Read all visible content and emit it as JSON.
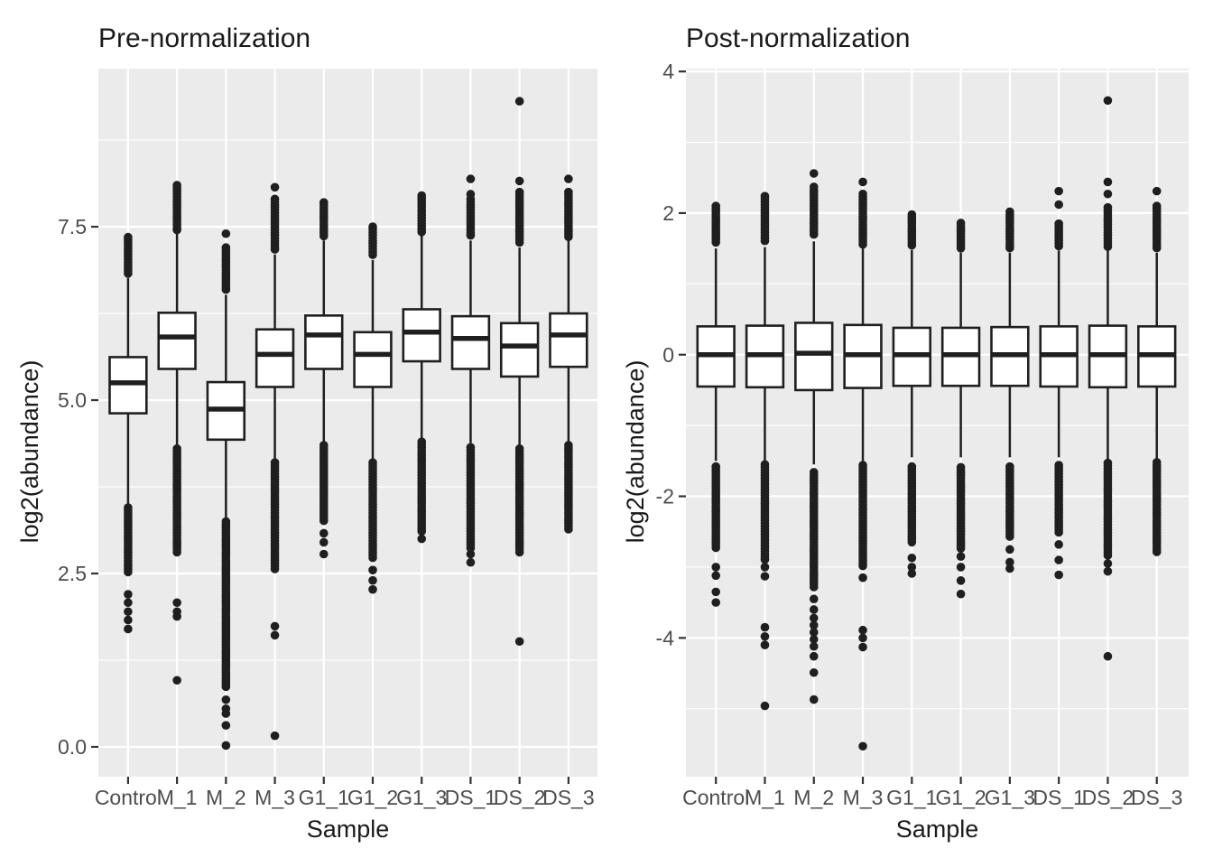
{
  "colors": {
    "figure_background": "#FFFFFF",
    "panel_background": "#EBEBEB",
    "gridline": "#FFFFFF",
    "box_fill": "#FFFFFF",
    "box_stroke": "#1F1F1F",
    "outlier": "#1F1F1F",
    "tick_mark": "#333333",
    "tick_label": "#4D4D4D",
    "title_text": "#1A1A1A",
    "axis_title_text": "#1A1A1A"
  },
  "chart_data": [
    {
      "type": "boxplot",
      "title": "Pre-normalization",
      "xlabel": "Sample",
      "ylabel": "log2(abundance)",
      "grid": true,
      "legend": false,
      "categories": [
        "Control",
        "M_1",
        "M_2",
        "M_3",
        "G1_1",
        "G1_2",
        "G1_3",
        "DS_1",
        "DS_2",
        "DS_3"
      ],
      "ylim": [
        -0.43,
        9.78
      ],
      "y_ticks": [
        {
          "value": 0.0,
          "label": "0.0"
        },
        {
          "value": 2.5,
          "label": "2.5"
        },
        {
          "value": 5.0,
          "label": "5.0"
        },
        {
          "value": 7.5,
          "label": "7.5"
        }
      ],
      "y_minor": [
        1.25,
        3.75,
        6.25,
        8.75
      ],
      "stats_order": [
        "whisker_low",
        "q1",
        "median",
        "q3",
        "whisker_high"
      ],
      "samples": [
        {
          "name": "Control",
          "stats": [
            3.5,
            4.81,
            5.25,
            5.62,
            6.76
          ],
          "outliers_high": {
            "cluster": [
              6.8,
              7.35
            ],
            "dots": []
          },
          "outliers_low": {
            "cluster": [
              2.5,
              3.45
            ],
            "dots": [
              2.2,
              2.08,
              1.95,
              1.83,
              1.7
            ]
          }
        },
        {
          "name": "M_1",
          "stats": [
            4.32,
            5.45,
            5.91,
            6.26,
            7.42
          ],
          "outliers_high": {
            "cluster": [
              7.45,
              8.1
            ],
            "dots": []
          },
          "outliers_low": {
            "cluster": [
              2.8,
              4.3
            ],
            "dots": [
              2.08,
              1.95,
              1.88,
              0.96
            ]
          }
        },
        {
          "name": "M_2",
          "stats": [
            3.3,
            4.43,
            4.87,
            5.26,
            6.52
          ],
          "outliers_high": {
            "cluster": [
              6.58,
              7.2
            ],
            "dots": [
              7.4
            ]
          },
          "outliers_low": {
            "cluster": [
              0.85,
              3.25
            ],
            "dots": [
              0.68,
              0.55,
              0.48,
              0.31,
              0.02
            ]
          }
        },
        {
          "name": "M_3",
          "stats": [
            4.12,
            5.19,
            5.66,
            6.02,
            7.1
          ],
          "outliers_high": {
            "cluster": [
              7.15,
              7.9
            ],
            "dots": [
              8.07
            ]
          },
          "outliers_low": {
            "cluster": [
              2.55,
              4.1
            ],
            "dots": [
              1.74,
              1.61,
              0.16
            ]
          }
        },
        {
          "name": "G1_1",
          "stats": [
            4.38,
            5.45,
            5.94,
            6.22,
            7.3
          ],
          "outliers_high": {
            "cluster": [
              7.35,
              7.85
            ],
            "dots": []
          },
          "outliers_low": {
            "cluster": [
              3.25,
              4.35
            ],
            "dots": [
              3.08,
              2.95,
              2.78
            ]
          }
        },
        {
          "name": "G1_2",
          "stats": [
            4.12,
            5.19,
            5.66,
            5.98,
            7.02
          ],
          "outliers_high": {
            "cluster": [
              7.08,
              7.5
            ],
            "dots": []
          },
          "outliers_low": {
            "cluster": [
              2.7,
              4.1
            ],
            "dots": [
              2.55,
              2.4,
              2.27
            ]
          }
        },
        {
          "name": "G1_3",
          "stats": [
            4.45,
            5.56,
            5.98,
            6.31,
            7.38
          ],
          "outliers_high": {
            "cluster": [
              7.42,
              7.95
            ],
            "dots": []
          },
          "outliers_low": {
            "cluster": [
              3.1,
              4.4
            ],
            "dots": [
              3.0
            ]
          }
        },
        {
          "name": "DS_1",
          "stats": [
            4.38,
            5.45,
            5.89,
            6.21,
            7.3
          ],
          "outliers_high": {
            "cluster": [
              7.36,
              7.9
            ],
            "dots": [
              8.19,
              7.97
            ]
          },
          "outliers_low": {
            "cluster": [
              2.85,
              4.32
            ],
            "dots": [
              2.78,
              2.66
            ]
          }
        },
        {
          "name": "DS_2",
          "stats": [
            4.32,
            5.34,
            5.78,
            6.11,
            7.2
          ],
          "outliers_high": {
            "cluster": [
              7.25,
              8.0
            ],
            "dots": [
              9.31,
              8.16
            ]
          },
          "outliers_low": {
            "cluster": [
              2.8,
              4.3
            ],
            "dots": [
              1.52
            ]
          }
        },
        {
          "name": "DS_3",
          "stats": [
            4.38,
            5.48,
            5.94,
            6.25,
            7.3
          ],
          "outliers_high": {
            "cluster": [
              7.34,
              8.0
            ],
            "dots": [
              8.19
            ]
          },
          "outliers_low": {
            "cluster": [
              3.1,
              4.35
            ],
            "dots": []
          }
        }
      ]
    },
    {
      "type": "boxplot",
      "title": "Post-normalization",
      "xlabel": "Sample",
      "ylabel": "log2(abundance)",
      "grid": true,
      "legend": false,
      "categories": [
        "Control",
        "M_1",
        "M_2",
        "M_3",
        "G1_1",
        "G1_2",
        "G1_3",
        "DS_1",
        "DS_2",
        "DS_3"
      ],
      "ylim": [
        -5.96,
        4.04
      ],
      "y_ticks": [
        {
          "value": -4,
          "label": "-4"
        },
        {
          "value": -2,
          "label": "-2"
        },
        {
          "value": 0,
          "label": "0"
        },
        {
          "value": 2,
          "label": "2"
        },
        {
          "value": 4,
          "label": "4"
        }
      ],
      "y_minor": [
        -5,
        -3,
        -1,
        1,
        3
      ],
      "stats_order": [
        "whisker_low",
        "q1",
        "median",
        "q3",
        "whisker_high"
      ],
      "samples": [
        {
          "name": "Control",
          "stats": [
            -1.5,
            -0.45,
            0,
            0.4,
            1.5
          ],
          "outliers_high": {
            "cluster": [
              1.55,
              2.1
            ],
            "dots": []
          },
          "outliers_low": {
            "cluster": [
              -2.73,
              -1.58
            ],
            "dots": [
              -3.0,
              -3.12,
              -3.35,
              -3.5
            ]
          }
        },
        {
          "name": "M_1",
          "stats": [
            -1.5,
            -0.46,
            0,
            0.41,
            1.52
          ],
          "outliers_high": {
            "cluster": [
              1.57,
              2.24
            ],
            "dots": []
          },
          "outliers_low": {
            "cluster": [
              -2.9,
              -1.55
            ],
            "dots": [
              -3.0,
              -3.13,
              -3.85,
              -3.98,
              -4.1,
              -4.96
            ]
          }
        },
        {
          "name": "M_2",
          "stats": [
            -1.55,
            -0.5,
            0.02,
            0.45,
            1.6
          ],
          "outliers_high": {
            "cluster": [
              1.66,
              2.37
            ],
            "dots": [
              2.56
            ]
          },
          "outliers_low": {
            "cluster": [
              -3.3,
              -1.66
            ],
            "dots": [
              -3.45,
              -3.6,
              -3.72,
              -3.82,
              -3.92,
              -4.02,
              -4.12,
              -4.26,
              -4.49,
              -4.87
            ]
          }
        },
        {
          "name": "M_3",
          "stats": [
            -1.5,
            -0.47,
            0,
            0.42,
            1.5
          ],
          "outliers_high": {
            "cluster": [
              1.53,
              2.27
            ],
            "dots": [
              2.44
            ]
          },
          "outliers_low": {
            "cluster": [
              -3.0,
              -1.56
            ],
            "dots": [
              -3.15,
              -3.89,
              -4.0,
              -4.13,
              -5.53
            ]
          }
        },
        {
          "name": "G1_1",
          "stats": [
            -1.45,
            -0.44,
            0,
            0.38,
            1.48
          ],
          "outliers_high": {
            "cluster": [
              1.53,
              1.98
            ],
            "dots": []
          },
          "outliers_low": {
            "cluster": [
              -2.68,
              -1.58
            ],
            "dots": [
              -2.87,
              -3.0,
              -3.09
            ]
          }
        },
        {
          "name": "G1_2",
          "stats": [
            -1.45,
            -0.44,
            0,
            0.38,
            1.44
          ],
          "outliers_high": {
            "cluster": [
              1.48,
              1.86
            ],
            "dots": []
          },
          "outliers_low": {
            "cluster": [
              -2.77,
              -1.59
            ],
            "dots": [
              -2.85,
              -3.0,
              -3.19,
              -3.38
            ]
          }
        },
        {
          "name": "G1_3",
          "stats": [
            -1.45,
            -0.44,
            0,
            0.39,
            1.44
          ],
          "outliers_high": {
            "cluster": [
              1.48,
              2.02
            ],
            "dots": []
          },
          "outliers_low": {
            "cluster": [
              -2.6,
              -1.58
            ],
            "dots": [
              -2.75,
              -2.93,
              -3.02
            ]
          }
        },
        {
          "name": "DS_1",
          "stats": [
            -1.45,
            -0.45,
            0,
            0.4,
            1.47
          ],
          "outliers_high": {
            "cluster": [
              1.51,
              1.85
            ],
            "dots": [
              2.31,
              2.12
            ]
          },
          "outliers_low": {
            "cluster": [
              -2.51,
              -1.56
            ],
            "dots": [
              -2.68,
              -2.9,
              -3.11
            ]
          }
        },
        {
          "name": "DS_2",
          "stats": [
            -1.5,
            -0.46,
            0,
            0.41,
            1.47
          ],
          "outliers_high": {
            "cluster": [
              1.51,
              2.08
            ],
            "dots": [
              3.59,
              2.44,
              2.27
            ]
          },
          "outliers_low": {
            "cluster": [
              -2.86,
              -1.53
            ],
            "dots": [
              -2.95,
              -3.06,
              -4.26
            ]
          }
        },
        {
          "name": "DS_3",
          "stats": [
            -1.48,
            -0.45,
            0,
            0.4,
            1.44
          ],
          "outliers_high": {
            "cluster": [
              1.48,
              2.1
            ],
            "dots": [
              2.31
            ]
          },
          "outliers_low": {
            "cluster": [
              -2.81,
              -1.52
            ],
            "dots": []
          }
        }
      ]
    }
  ]
}
